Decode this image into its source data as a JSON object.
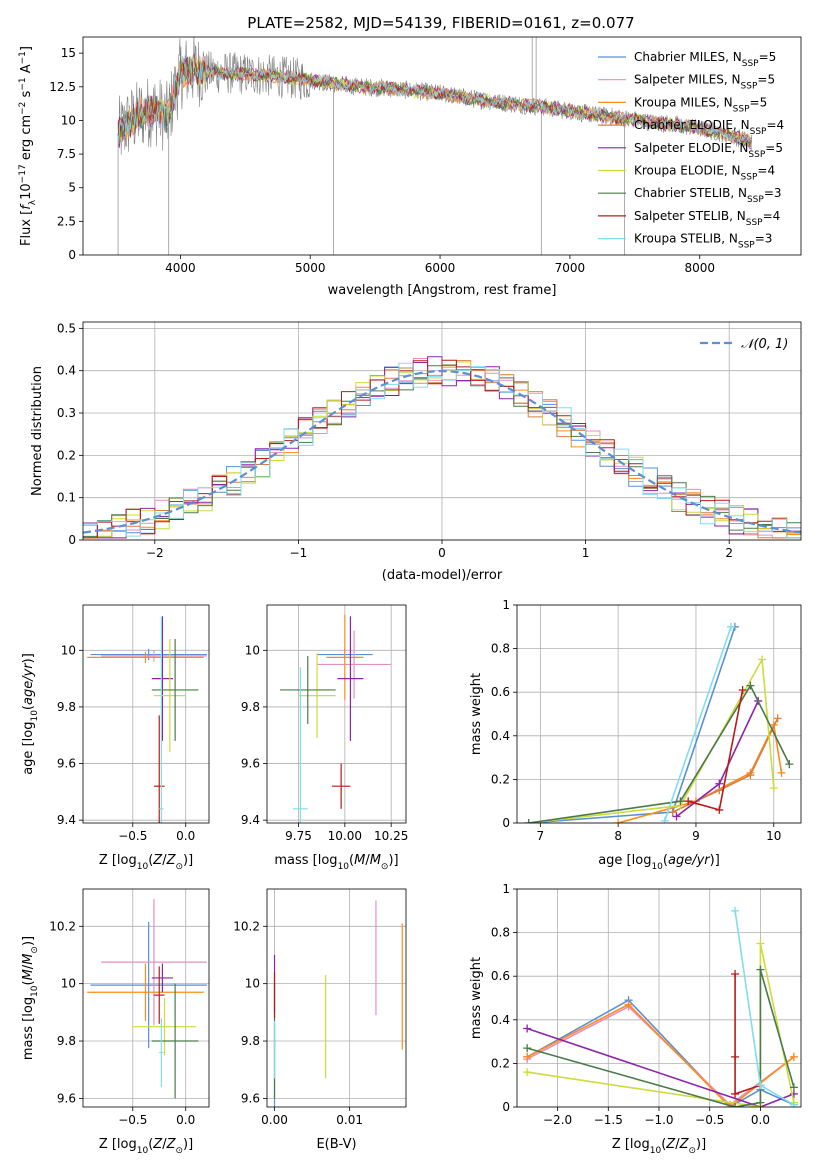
{
  "figure": {
    "title": "PLATE=2582, MJD=54139, FIBERID=0161, z=0.077",
    "series_colors": {
      "Chabrier MILES": "#4c72b0",
      "Salpeter MILES": "#e377c2",
      "Kroupa MILES": "#ff7f0e",
      "Chabrier ELODIE": "#dd8452",
      "Salpeter ELODIE": "#8c1fb4",
      "Kroupa ELODIE": "#d4e157",
      "Chabrier STELIB": "#2e6b2e",
      "Salpeter STELIB": "#b00000",
      "Kroupa STELIB": "#7fdbea"
    }
  },
  "chart_data": [
    {
      "id": "spectrum",
      "type": "line",
      "xlabel": "wavelength [Angstrom, rest frame]",
      "ylabel": "Flux [fλ10⁻¹⁷ erg cm⁻² s⁻¹ A⁻¹]",
      "xlim": [
        3250,
        8780
      ],
      "ylim": [
        0,
        16.2
      ],
      "xticks": [
        4000,
        5000,
        6000,
        7000,
        8000
      ],
      "yticks": [
        0.0,
        2.5,
        5.0,
        7.5,
        10.0,
        12.5,
        15.0
      ],
      "grid": false,
      "legend_position": "top-right",
      "legend": [
        {
          "label": "Chabrier MILES, N",
          "sub": "SSP",
          "suffix": "=5",
          "color": "#5b8fd6"
        },
        {
          "label": "Salpeter MILES, N",
          "sub": "SSP",
          "suffix": "=5",
          "color": "#e58fbf"
        },
        {
          "label": "Kroupa MILES, N",
          "sub": "SSP",
          "suffix": "=5",
          "color": "#ff8c1a"
        },
        {
          "label": "Chabrier ELODIE, N",
          "sub": "SSP",
          "suffix": "=4",
          "color": "#d97f3f"
        },
        {
          "label": "Salpeter ELODIE, N",
          "sub": "SSP",
          "suffix": "=5",
          "color": "#8e24aa"
        },
        {
          "label": "Kroupa ELODIE, N",
          "sub": "SSP",
          "suffix": "=4",
          "color": "#cddc39"
        },
        {
          "label": "Chabrier STELIB, N",
          "sub": "SSP",
          "suffix": "=3",
          "color": "#4a7a4a"
        },
        {
          "label": "Salpeter STELIB, N",
          "sub": "SSP",
          "suffix": "=4",
          "color": "#b71c1c"
        },
        {
          "label": "Kroupa STELIB, N",
          "sub": "SSP",
          "suffix": "=3",
          "color": "#80deea"
        }
      ],
      "model_continuum": {
        "x": [
          3520,
          3600,
          3700,
          3800,
          3900,
          4000,
          4100,
          4200,
          4400,
          4600,
          4800,
          5000,
          5200,
          5400,
          5600,
          5800,
          6000,
          6200,
          6400,
          6600,
          6800,
          7000,
          7200,
          7400,
          7600,
          7800,
          8000,
          8200,
          8400
        ],
        "y": [
          9.0,
          9.8,
          10.5,
          10.8,
          10.2,
          13.5,
          13.8,
          13.6,
          13.5,
          13.4,
          13.2,
          13.0,
          12.7,
          12.5,
          12.4,
          12.2,
          12.0,
          11.7,
          11.4,
          11.2,
          11.0,
          10.7,
          10.4,
          10.2,
          9.9,
          9.7,
          9.4,
          9.0,
          8.4
        ]
      }
    },
    {
      "id": "residual-histogram",
      "type": "line",
      "xlabel": "(data-model)/error",
      "ylabel": "Normed distribution",
      "xlim": [
        -2.5,
        2.5
      ],
      "ylim": [
        0,
        0.515
      ],
      "xticks": [
        -2,
        -1,
        0,
        1,
        2
      ],
      "xtick_labels": [
        "−2",
        "−1",
        "0",
        "1",
        "2"
      ],
      "yticks": [
        0.0,
        0.1,
        0.2,
        0.3,
        0.4,
        0.5
      ],
      "grid": true,
      "legend_position": "top-right",
      "legend": [
        {
          "label": "𝒩(0, 1)",
          "color": "#5b8fd6"
        }
      ],
      "gaussian": {
        "mean": 0,
        "sigma": 1
      }
    },
    {
      "id": "age-vs-z",
      "type": "scatter",
      "xlabel": "Z [log₁₀(Z/Z⊙)]",
      "ylabel": "age  [log₁₀(age/yr)]",
      "xlim": [
        -0.97,
        0.22
      ],
      "ylim": [
        9.39,
        10.16
      ],
      "xticks": [
        -0.5,
        0.0
      ],
      "xtick_labels": [
        "−0.5",
        "0.0"
      ],
      "yticks": [
        9.4,
        9.6,
        9.8,
        10.0
      ],
      "grid": true,
      "points": [
        {
          "x": -0.35,
          "y": 9.985,
          "xerr": 0.55,
          "yerr": 0.02,
          "c": "#5b8fd6"
        },
        {
          "x": -0.3,
          "y": 9.98,
          "xerr": 0.5,
          "yerr": 0.02,
          "c": "#e58fbf"
        },
        {
          "x": -0.38,
          "y": 9.975,
          "xerr": 0.55,
          "yerr": 0.02,
          "c": "#ff8c1a"
        },
        {
          "x": -0.22,
          "y": 9.9,
          "xerr": 0.1,
          "yerr": 0.22,
          "c": "#8e24aa"
        },
        {
          "x": -0.15,
          "y": 9.84,
          "xerr": 0.15,
          "yerr": 0.2,
          "c": "#cddc39"
        },
        {
          "x": -0.1,
          "y": 9.86,
          "xerr": 0.22,
          "yerr": 0.18,
          "c": "#4a7a4a"
        },
        {
          "x": -0.25,
          "y": 9.52,
          "xerr": 0.05,
          "yerr": 0.25,
          "c": "#b71c1c"
        },
        {
          "x": -0.23,
          "y": 9.44,
          "xerr": 0.02,
          "yerr": 0.68,
          "c": "#80deea"
        }
      ]
    },
    {
      "id": "age-vs-mass",
      "type": "scatter",
      "xlabel": "mass [log₁₀(M/M⊙)]",
      "ylabel": "",
      "xlim": [
        9.58,
        10.33
      ],
      "ylim": [
        9.39,
        10.16
      ],
      "xticks": [
        9.75,
        10.0,
        10.25
      ],
      "xtick_labels": [
        "9.75",
        "10.00",
        "10.25"
      ],
      "yticks": [
        9.4,
        9.6,
        9.8,
        10.0
      ],
      "grid": true,
      "points": [
        {
          "x": 10.0,
          "y": 9.985,
          "xerr": 0.15,
          "yerr": 0.02,
          "c": "#5b8fd6"
        },
        {
          "x": 10.05,
          "y": 9.95,
          "xerr": 0.2,
          "yerr": 0.12,
          "c": "#e58fbf"
        },
        {
          "x": 10.0,
          "y": 9.975,
          "xerr": 0.1,
          "yerr": 0.15,
          "c": "#ff8c1a"
        },
        {
          "x": 10.03,
          "y": 9.9,
          "xerr": 0.07,
          "yerr": 0.22,
          "c": "#8e24aa"
        },
        {
          "x": 9.85,
          "y": 9.84,
          "xerr": 0.1,
          "yerr": 0.15,
          "c": "#cddc39"
        },
        {
          "x": 9.8,
          "y": 9.86,
          "xerr": 0.15,
          "yerr": 0.12,
          "c": "#4a7a4a"
        },
        {
          "x": 9.98,
          "y": 9.52,
          "xerr": 0.05,
          "yerr": 0.08,
          "c": "#b71c1c"
        },
        {
          "x": 9.76,
          "y": 9.44,
          "xerr": 0.04,
          "yerr": 0.5,
          "c": "#80deea"
        }
      ]
    },
    {
      "id": "mass-weight-vs-age",
      "type": "line",
      "xlabel": "age  [log₁₀(age/yr)]",
      "ylabel": "mass weight",
      "xlim": [
        6.7,
        10.35
      ],
      "ylim": [
        0,
        1.0
      ],
      "xticks": [
        7,
        8,
        9,
        10
      ],
      "yticks": [
        0.0,
        0.2,
        0.4,
        0.6,
        0.8,
        1.0
      ],
      "grid": true,
      "series": [
        {
          "name": "Chabrier MILES",
          "c": "#5b8fd6",
          "x": [
            6.85,
            8.7,
            9.5
          ],
          "y": [
            0.0,
            0.05,
            0.9
          ]
        },
        {
          "name": "Kroupa MILES",
          "c": "#ff8c1a",
          "x": [
            8.0,
            9.0,
            9.7,
            10.0,
            10.1
          ],
          "y": [
            0.0,
            0.1,
            0.23,
            0.45,
            0.23
          ]
        },
        {
          "name": "Chabrier ELODIE",
          "c": "#d97f3f",
          "x": [
            8.7,
            9.3,
            9.7,
            10.05
          ],
          "y": [
            0.05,
            0.15,
            0.22,
            0.48
          ]
        },
        {
          "name": "Salpeter ELODIE",
          "c": "#8e24aa",
          "x": [
            8.75,
            9.3,
            9.8
          ],
          "y": [
            0.03,
            0.18,
            0.56
          ]
        },
        {
          "name": "Kroupa ELODIE",
          "c": "#cddc39",
          "x": [
            6.85,
            8.8,
            9.85,
            10.0
          ],
          "y": [
            0.0,
            0.08,
            0.75,
            0.16
          ]
        },
        {
          "name": "Chabrier STELIB",
          "c": "#4a7a4a",
          "x": [
            6.85,
            8.8,
            9.7,
            10.2
          ],
          "y": [
            0.0,
            0.1,
            0.63,
            0.27
          ]
        },
        {
          "name": "Salpeter STELIB",
          "c": "#b71c1c",
          "x": [
            8.9,
            9.3,
            9.6
          ],
          "y": [
            0.1,
            0.06,
            0.61
          ]
        },
        {
          "name": "Kroupa STELIB",
          "c": "#80deea",
          "x": [
            8.6,
            9.45
          ],
          "y": [
            0.01,
            0.9
          ]
        }
      ]
    },
    {
      "id": "mass-vs-z",
      "type": "scatter",
      "xlabel": "Z [log₁₀(Z/Z⊙)]",
      "ylabel": "mass [log₁₀(M/M⊙)]",
      "xlim": [
        -0.97,
        0.22
      ],
      "ylim": [
        9.57,
        10.33
      ],
      "xticks": [
        -0.5,
        0.0
      ],
      "xtick_labels": [
        "−0.5",
        "0.0"
      ],
      "yticks": [
        9.6,
        9.8,
        10.0,
        10.2
      ],
      "grid": true,
      "points": [
        {
          "x": -0.35,
          "y": 9.995,
          "xerr": 0.55,
          "yerr": 0.22,
          "c": "#5b8fd6"
        },
        {
          "x": -0.3,
          "y": 10.075,
          "xerr": 0.5,
          "yerr": 0.22,
          "c": "#e58fbf"
        },
        {
          "x": -0.38,
          "y": 9.97,
          "xerr": 0.55,
          "yerr": 0.1,
          "c": "#ff8c1a"
        },
        {
          "x": -0.22,
          "y": 10.02,
          "xerr": 0.1,
          "yerr": 0.05,
          "c": "#8e24aa"
        },
        {
          "x": -0.2,
          "y": 9.85,
          "xerr": 0.3,
          "yerr": 0.1,
          "c": "#cddc39"
        },
        {
          "x": -0.1,
          "y": 9.8,
          "xerr": 0.22,
          "yerr": 0.2,
          "c": "#4a7a4a"
        },
        {
          "x": -0.25,
          "y": 9.96,
          "xerr": 0.05,
          "yerr": 0.1,
          "c": "#b71c1c"
        },
        {
          "x": -0.23,
          "y": 9.76,
          "xerr": 0.02,
          "yerr": 0.12,
          "c": "#80deea"
        }
      ]
    },
    {
      "id": "mass-vs-ebv",
      "type": "scatter",
      "xlabel": "E(B-V)",
      "ylabel": "",
      "xlim": [
        -0.001,
        0.0175
      ],
      "ylim": [
        9.57,
        10.33
      ],
      "xticks": [
        0.0,
        0.01
      ],
      "xtick_labels": [
        "0.00",
        "0.01"
      ],
      "yticks": [
        9.6,
        9.8,
        10.0,
        10.2
      ],
      "grid": true,
      "points": [
        {
          "x": 0.0,
          "y": 9.72,
          "xerr": 0,
          "yerr": 0.15,
          "c": "#5b8fd6"
        },
        {
          "x": 0.0135,
          "y": 10.09,
          "xerr": 0,
          "yerr": 0.2,
          "c": "#e58fbf"
        },
        {
          "x": 0.017,
          "y": 9.99,
          "xerr": 0,
          "yerr": 0.22,
          "c": "#ff8c1a"
        },
        {
          "x": 0.0,
          "y": 10.0,
          "xerr": 0,
          "yerr": 0.1,
          "c": "#8e24aa"
        },
        {
          "x": 0.0068,
          "y": 9.85,
          "xerr": 0,
          "yerr": 0.18,
          "c": "#cddc39"
        },
        {
          "x": 0.0,
          "y": 9.8,
          "xerr": 0,
          "yerr": 0.2,
          "c": "#4a7a4a"
        },
        {
          "x": 0.0,
          "y": 9.96,
          "xerr": 0,
          "yerr": 0.08,
          "c": "#b71c1c"
        },
        {
          "x": 0.0,
          "y": 9.77,
          "xerr": 0,
          "yerr": 0.1,
          "c": "#80deea"
        }
      ]
    },
    {
      "id": "mass-weight-vs-z",
      "type": "line",
      "xlabel": "Z [log₁₀(Z/Z⊙)]",
      "ylabel": "mass weight",
      "xlim": [
        -2.4,
        0.4
      ],
      "ylim": [
        0,
        1.0
      ],
      "xticks": [
        -2.0,
        -1.5,
        -1.0,
        -0.5,
        0.0
      ],
      "xtick_labels": [
        "−2.0",
        "−1.5",
        "−1.0",
        "−0.5",
        "0.0"
      ],
      "yticks": [
        0.0,
        0.2,
        0.4,
        0.6,
        0.8,
        1.0
      ],
      "grid": true,
      "series": [
        {
          "name": "Chabrier MILES",
          "c": "#5b8fd6",
          "x": [
            -2.3,
            -1.3,
            -0.3,
            0.0,
            0.33
          ],
          "y": [
            0.23,
            0.49,
            0.0,
            0.08,
            0.01
          ]
        },
        {
          "name": "Salpeter MILES",
          "c": "#e58fbf",
          "x": [
            -2.3,
            -1.3,
            -0.3,
            0.33
          ],
          "y": [
            0.22,
            0.46,
            0.01,
            0.23
          ]
        },
        {
          "name": "Kroupa MILES",
          "c": "#ff8c1a",
          "x": [
            -2.3,
            -1.3,
            -0.3,
            0.33
          ],
          "y": [
            0.23,
            0.47,
            0.0,
            0.23
          ]
        },
        {
          "name": "Salpeter ELODIE",
          "c": "#8e24aa",
          "x": [
            -2.3,
            0.0,
            0.33
          ],
          "y": [
            0.36,
            0.0,
            0.06
          ]
        },
        {
          "name": "Kroupa ELODIE",
          "c": "#cddc39",
          "x": [
            -2.3,
            0.0,
            0.0,
            0.33
          ],
          "y": [
            0.16,
            0.0,
            0.75,
            0.02
          ]
        },
        {
          "name": "Chabrier STELIB",
          "c": "#4a7a4a",
          "x": [
            -2.3,
            -0.25,
            0.0,
            0.0,
            0.33
          ],
          "y": [
            0.27,
            0.0,
            0.02,
            0.63,
            0.09
          ]
        },
        {
          "name": "Salpeter STELIB",
          "c": "#b71c1c",
          "x": [
            -0.25,
            -0.25,
            -0.25,
            0.0
          ],
          "y": [
            0.61,
            0.23,
            0.06,
            0.1
          ]
        },
        {
          "name": "Kroupa STELIB",
          "c": "#80deea",
          "x": [
            -0.25,
            0.0,
            0.33
          ],
          "y": [
            0.9,
            0.1,
            0.01
          ]
        }
      ]
    }
  ]
}
